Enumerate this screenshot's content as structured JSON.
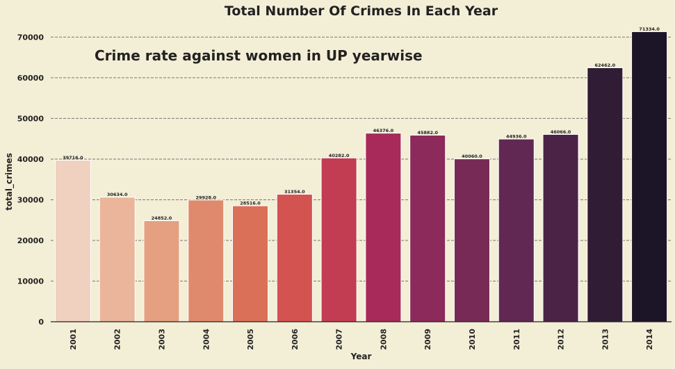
{
  "chart_data": {
    "type": "bar",
    "title": "Total Number Of Crimes In Each Year",
    "annotation": "Crime rate against women in UP yearwise",
    "xlabel": "Year",
    "ylabel": "total_crimes",
    "categories": [
      "2001",
      "2002",
      "2003",
      "2004",
      "2005",
      "2006",
      "2007",
      "2008",
      "2009",
      "2010",
      "2011",
      "2012",
      "2013",
      "2014"
    ],
    "values": [
      39716.0,
      30634.0,
      24852.0,
      29928.0,
      28516.0,
      31354.0,
      40282.0,
      46376.0,
      45882.0,
      40060.0,
      44936.0,
      46066.0,
      62462.0,
      71334.0
    ],
    "value_labels": [
      "39716.0",
      "30634.0",
      "24852.0",
      "29928.0",
      "28516.0",
      "31354.0",
      "40282.0",
      "46376.0",
      "45882.0",
      "40060.0",
      "44936.0",
      "46066.0",
      "62462.0",
      "71334.0"
    ],
    "yticks": [
      0,
      10000,
      20000,
      30000,
      40000,
      50000,
      60000,
      70000
    ],
    "ylim": [
      0,
      74000
    ],
    "grid": "horizontal dashed",
    "background_color": "#f3eed6",
    "bar_colors": [
      "#f0d0be",
      "#eab59a",
      "#e5a081",
      "#e08a6d",
      "#db7059",
      "#d2534f",
      "#c23c52",
      "#a72a5a",
      "#8c2a5b",
      "#782a57",
      "#602852",
      "#4b2347",
      "#301d35",
      "#1c1427"
    ]
  }
}
